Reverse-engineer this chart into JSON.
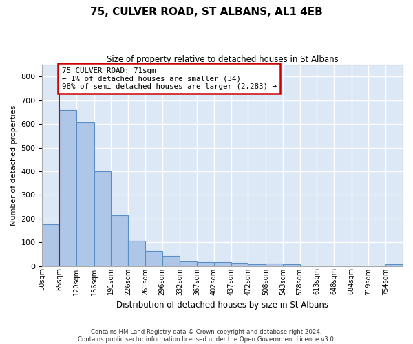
{
  "title": "75, CULVER ROAD, ST ALBANS, AL1 4EB",
  "subtitle": "Size of property relative to detached houses in St Albans",
  "xlabel": "Distribution of detached houses by size in St Albans",
  "ylabel": "Number of detached properties",
  "bar_color": "#aec6e8",
  "bar_edge_color": "#5a8fc4",
  "background_color": "#dce8f5",
  "grid_color": "#ffffff",
  "annotation_box_text": "75 CULVER ROAD: 71sqm\n← 1% of detached houses are smaller (34)\n98% of semi-detached houses are larger (2,283) →",
  "annotation_box_color": "#cc0000",
  "marker_line_color": "#cc0000",
  "categories": [
    "50sqm",
    "85sqm",
    "120sqm",
    "156sqm",
    "191sqm",
    "226sqm",
    "261sqm",
    "296sqm",
    "332sqm",
    "367sqm",
    "402sqm",
    "437sqm",
    "472sqm",
    "508sqm",
    "543sqm",
    "578sqm",
    "613sqm",
    "648sqm",
    "684sqm",
    "719sqm",
    "754sqm"
  ],
  "bin_edges": [
    50,
    85,
    120,
    156,
    191,
    226,
    261,
    296,
    332,
    367,
    402,
    437,
    472,
    508,
    543,
    578,
    613,
    648,
    684,
    719,
    754,
    789
  ],
  "values": [
    175,
    660,
    605,
    400,
    215,
    107,
    63,
    43,
    18,
    17,
    15,
    12,
    7,
    10,
    8,
    0,
    0,
    0,
    0,
    0,
    8
  ],
  "ylim": [
    0,
    850
  ],
  "yticks": [
    0,
    100,
    200,
    300,
    400,
    500,
    600,
    700,
    800
  ],
  "footer_line1": "Contains HM Land Registry data © Crown copyright and database right 2024.",
  "footer_line2": "Contains public sector information licensed under the Open Government Licence v3.0."
}
